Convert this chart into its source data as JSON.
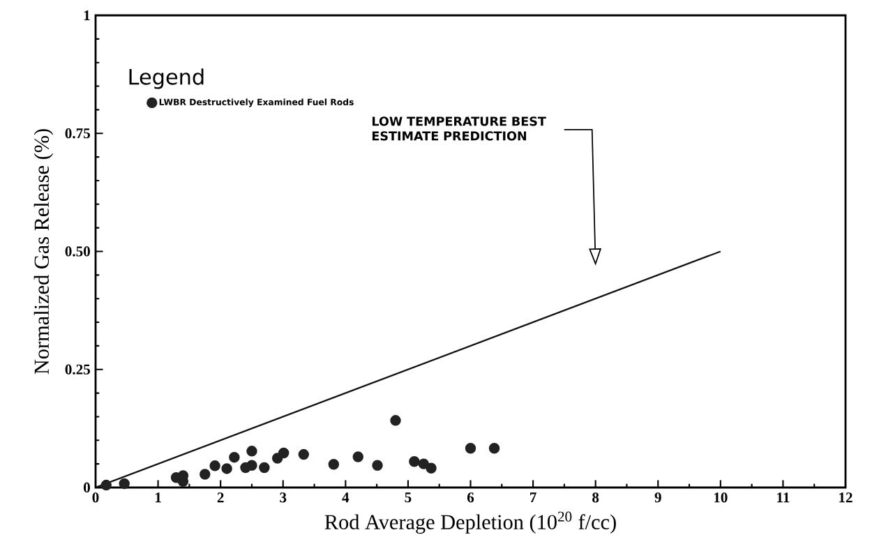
{
  "chart_data": {
    "type": "scatter",
    "xlabel": "Rod Average Depletion (10$^{20}$ f/cc)",
    "ylabel": "Normalized Gas Release (%)",
    "legend_title": "Legend",
    "legend": "top left",
    "xlim": [
      0,
      12
    ],
    "ylim": [
      0,
      1
    ],
    "xticks": [
      0,
      1,
      2,
      3,
      4,
      5,
      6,
      7,
      8,
      9,
      10,
      11,
      12
    ],
    "yticks": [
      0,
      {
        "value": 0.25,
        "label": "0.25"
      },
      {
        "value": 0.5,
        "label": "0.50"
      },
      0.75,
      1
    ],
    "series": [
      {
        "name": "LWBR Destructively Examined Fuel Rods",
        "color": "#222222",
        "x": [
          0.17,
          0.46,
          1.29,
          1.4,
          1.4,
          1.75,
          1.91,
          2.1,
          2.22,
          2.4,
          2.5,
          2.5,
          2.7,
          2.91,
          3.01,
          3.33,
          3.81,
          4.2,
          4.51,
          4.8,
          5.1,
          5.25,
          5.37,
          6.0,
          6.38
        ],
        "values": [
          0.005,
          0.008,
          0.021,
          0.025,
          0.013,
          0.028,
          0.046,
          0.04,
          0.064,
          0.042,
          0.047,
          0.077,
          0.042,
          0.062,
          0.073,
          0.07,
          0.049,
          0.065,
          0.047,
          0.142,
          0.055,
          0.05,
          0.041,
          0.083,
          0.083
        ]
      },
      {
        "type": "line",
        "color": "#111111",
        "x": [
          0,
          10
        ],
        "values": [
          0,
          0.5
        ]
      }
    ],
    "annotations": [
      "LOW TEMPERATURE BEST ESTIMATE PREDICTION"
    ]
  }
}
